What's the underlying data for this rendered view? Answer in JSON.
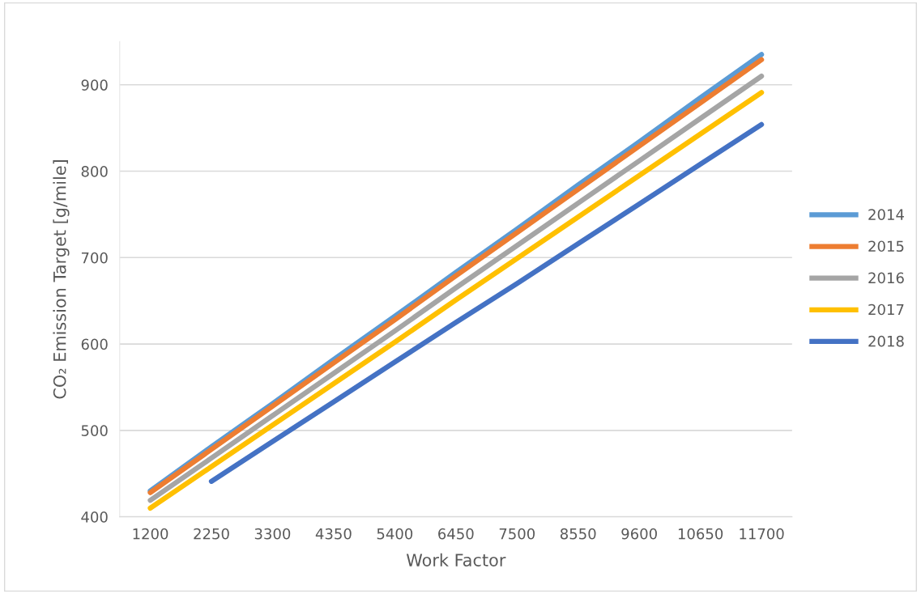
{
  "chart_data": {
    "type": "line",
    "xlabel": "Work Factor",
    "ylabel": "CO₂ Emission Target [g/mile]",
    "categories": [
      "1200",
      "2250",
      "3300",
      "4350",
      "5400",
      "6450",
      "7500",
      "8550",
      "9600",
      "10650",
      "11700"
    ],
    "ylim": [
      400,
      950
    ],
    "yticks": [
      400,
      500,
      600,
      700,
      800,
      900
    ],
    "grid": "y",
    "legend": "right",
    "marker": "none",
    "line_style": "solid",
    "series": [
      {
        "name": "2014",
        "color": "#5b9bd5",
        "values": [
          430,
          481,
          531,
          582,
          632,
          683,
          733,
          784,
          834,
          885,
          935
        ]
      },
      {
        "name": "2015",
        "color": "#ed7d31",
        "values": [
          428,
          478,
          528,
          578,
          628,
          679,
          729,
          779,
          829,
          879,
          929
        ]
      },
      {
        "name": "2016",
        "color": "#a5a5a5",
        "values": [
          419,
          468,
          517,
          566,
          615,
          665,
          714,
          763,
          812,
          861,
          910
        ]
      },
      {
        "name": "2017",
        "color": "#ffc000",
        "values": [
          410,
          458,
          506,
          554,
          602,
          651,
          699,
          747,
          795,
          843,
          891
        ]
      },
      {
        "name": "2018",
        "color": "#4472c4",
        "values": [
          null,
          441,
          487,
          533,
          579,
          625,
          670,
          716,
          762,
          808,
          854
        ]
      }
    ]
  }
}
